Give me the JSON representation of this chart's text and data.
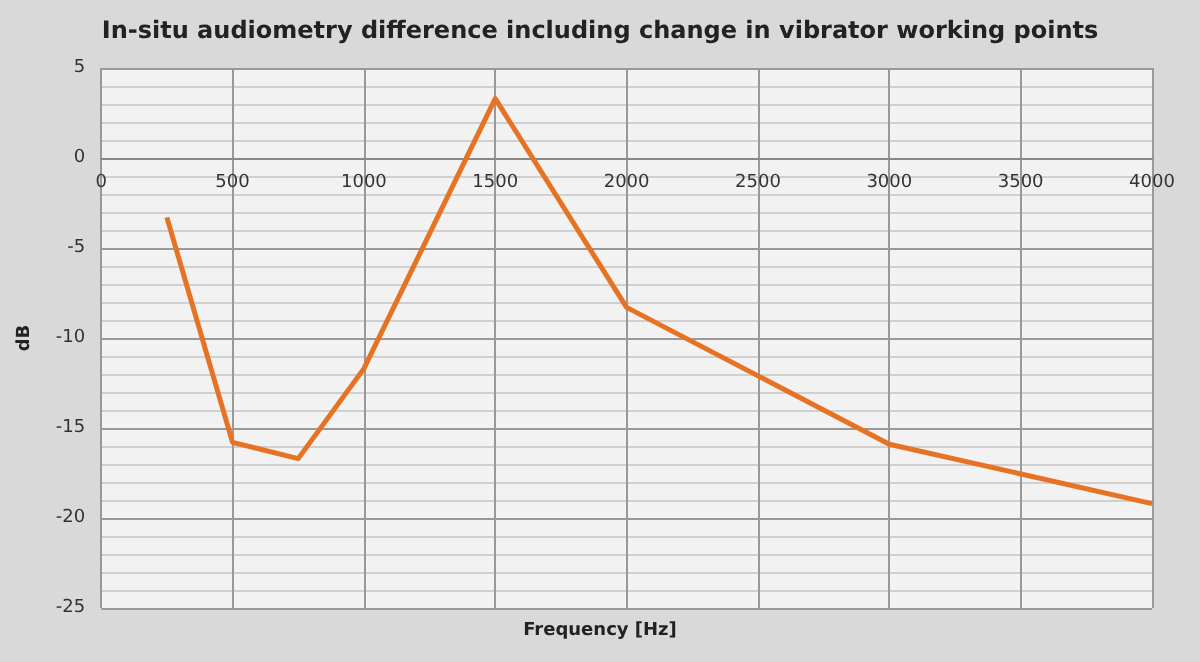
{
  "chart_data": {
    "type": "line",
    "title": "In-situ audiometry difference including change in vibrator working points",
    "xlabel": "Frequency [Hz]",
    "ylabel": "dB",
    "x": [
      250,
      500,
      750,
      1000,
      1500,
      2000,
      3000,
      4000
    ],
    "series": [
      {
        "color": "#e67324",
        "values": [
          -3.3,
          -15.8,
          -16.7,
          -11.7,
          3.3,
          -8.3,
          -15.9,
          -19.2
        ]
      }
    ],
    "xlim": [
      0,
      4000
    ],
    "xticks": [
      0,
      500,
      1000,
      1500,
      2000,
      2500,
      3000,
      3500,
      4000
    ],
    "ylim": [
      -25,
      5
    ],
    "yticks": [
      -25,
      -20,
      -15,
      -10,
      -5,
      0,
      5
    ],
    "grid": true,
    "marker": "none",
    "line_style": "solid"
  }
}
